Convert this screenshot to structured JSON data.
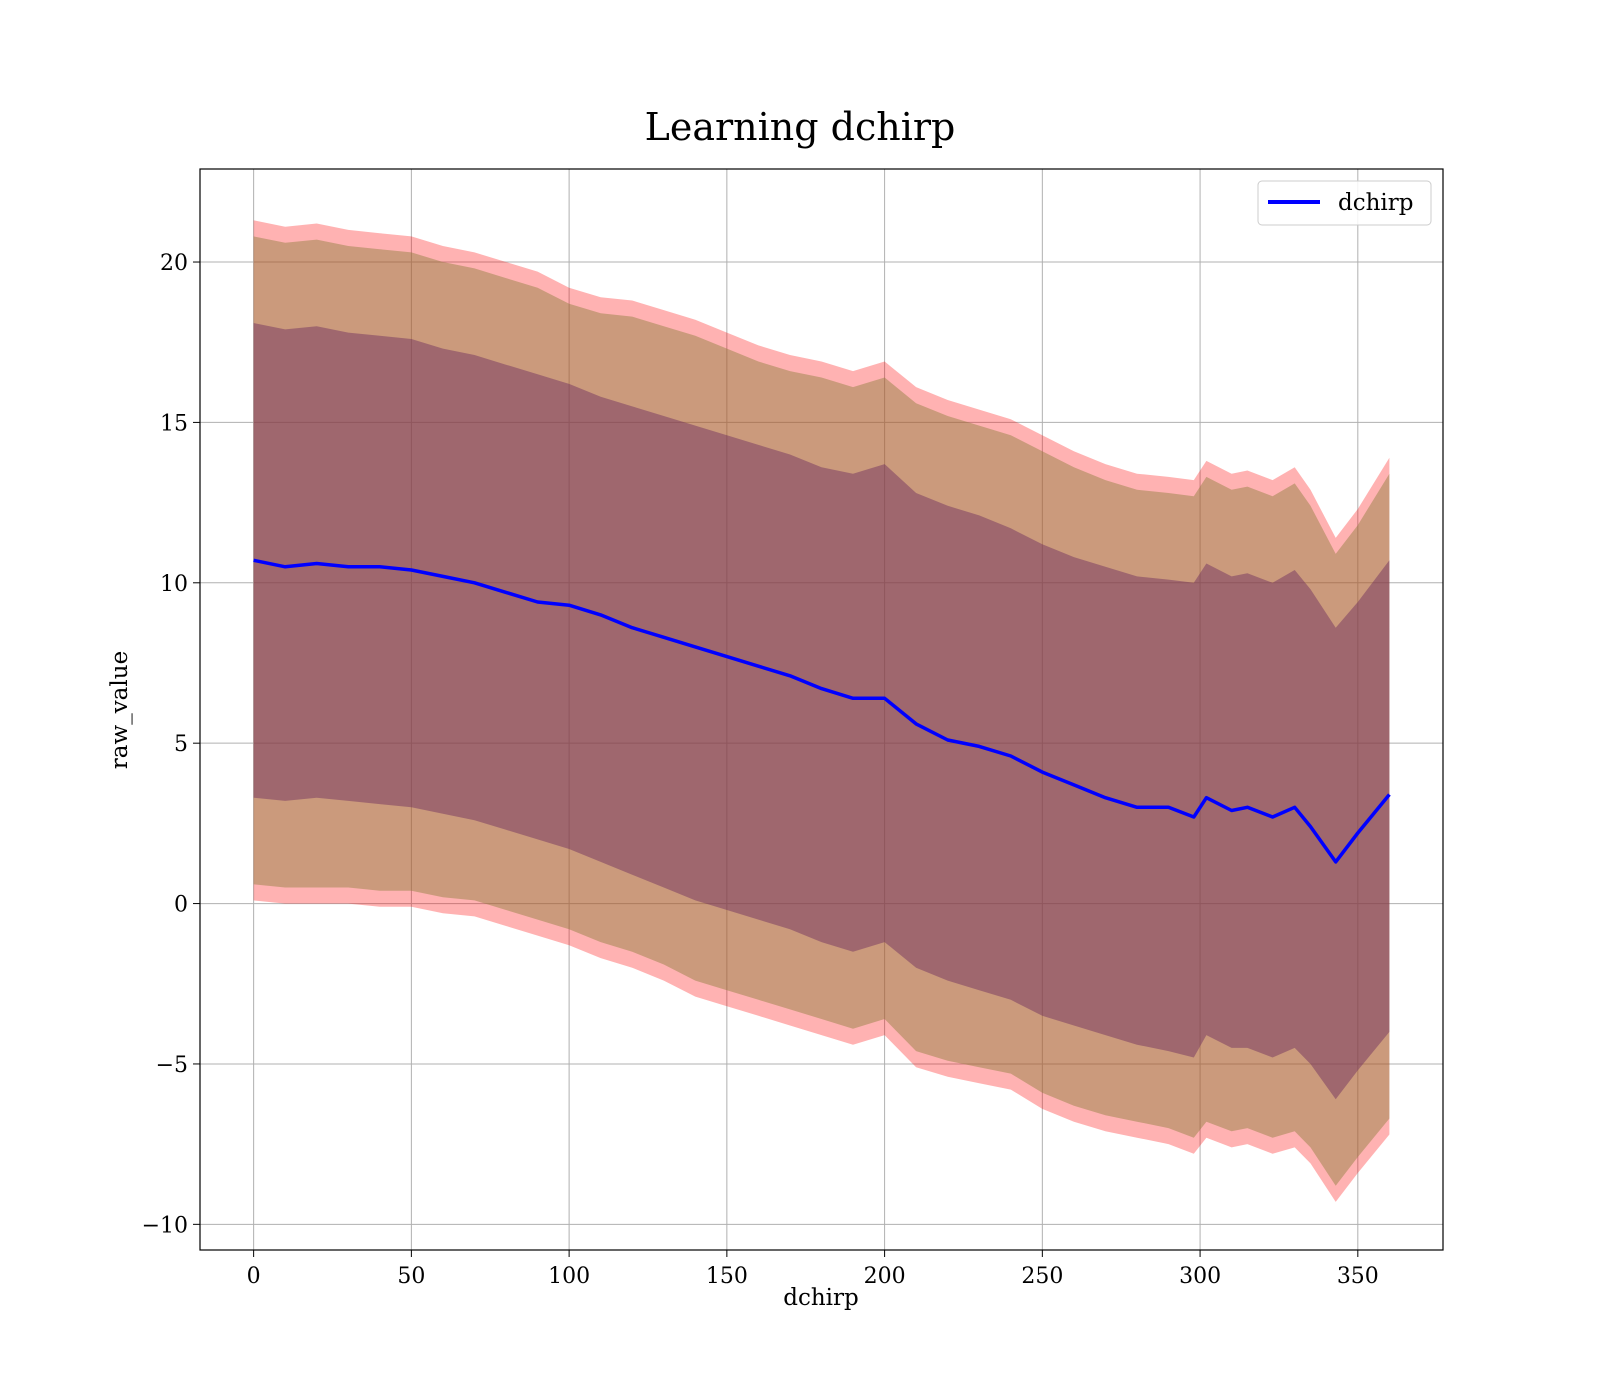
{
  "chart_data": {
    "type": "line",
    "title": "Learning dchirp",
    "xlabel": "dchirp",
    "ylabel": "raw_value",
    "xlim": [
      -17,
      377
    ],
    "ylim": [
      -10.8,
      22.9
    ],
    "xticks": [
      0,
      50,
      100,
      150,
      200,
      250,
      300,
      350
    ],
    "xtick_labels": [
      "0",
      "50",
      "100",
      "150",
      "200",
      "250",
      "300",
      "350"
    ],
    "yticks": [
      -10,
      -5,
      0,
      5,
      10,
      15,
      20
    ],
    "ytick_labels": [
      "−10",
      "−5",
      "0",
      "5",
      "10",
      "15",
      "20"
    ],
    "grid": true,
    "legend": {
      "position": "top-right",
      "entries": [
        "dchirp"
      ]
    },
    "colors": {
      "line": "#0000ff",
      "outer_band": "#ff0000",
      "middle_band": "#8b7d3a",
      "inner_band": "#6b2a5e"
    },
    "series": [
      {
        "name": "dchirp",
        "x": [
          0,
          10,
          20,
          30,
          40,
          50,
          60,
          70,
          80,
          90,
          100,
          110,
          120,
          130,
          140,
          150,
          160,
          170,
          180,
          190,
          200,
          210,
          220,
          230,
          240,
          250,
          260,
          270,
          280,
          290,
          298,
          302,
          310,
          315,
          323,
          330,
          335,
          343,
          350,
          360
        ],
        "y": [
          10.7,
          10.5,
          10.6,
          10.5,
          10.5,
          10.4,
          10.2,
          10.0,
          9.7,
          9.4,
          9.3,
          9.0,
          8.6,
          8.3,
          8.0,
          7.7,
          7.4,
          7.1,
          6.7,
          6.4,
          6.4,
          5.6,
          5.1,
          4.9,
          4.6,
          4.1,
          3.7,
          3.3,
          3.0,
          3.0,
          2.7,
          3.3,
          2.9,
          3.0,
          2.7,
          3.0,
          2.4,
          1.3,
          2.2,
          3.4
        ]
      }
    ],
    "bands": [
      {
        "label": "outer",
        "upper": [
          21.3,
          21.1,
          21.2,
          21.0,
          20.9,
          20.8,
          20.5,
          20.3,
          20.0,
          19.7,
          19.2,
          18.9,
          18.8,
          18.5,
          18.2,
          17.8,
          17.4,
          17.1,
          16.9,
          16.6,
          16.9,
          16.1,
          15.7,
          15.4,
          15.1,
          14.6,
          14.1,
          13.7,
          13.4,
          13.3,
          13.2,
          13.8,
          13.4,
          13.5,
          13.2,
          13.6,
          12.9,
          11.4,
          12.3,
          13.9
        ],
        "lower": [
          0.1,
          0.0,
          0.0,
          0.0,
          -0.1,
          -0.1,
          -0.3,
          -0.4,
          -0.7,
          -1.0,
          -1.3,
          -1.7,
          -2.0,
          -2.4,
          -2.9,
          -3.2,
          -3.5,
          -3.8,
          -4.1,
          -4.4,
          -4.1,
          -5.1,
          -5.4,
          -5.6,
          -5.8,
          -6.4,
          -6.8,
          -7.1,
          -7.3,
          -7.5,
          -7.8,
          -7.3,
          -7.6,
          -7.5,
          -7.8,
          -7.6,
          -8.1,
          -9.3,
          -8.4,
          -7.2
        ]
      },
      {
        "label": "middle",
        "upper": [
          20.8,
          20.6,
          20.7,
          20.5,
          20.4,
          20.3,
          20.0,
          19.8,
          19.5,
          19.2,
          18.7,
          18.4,
          18.3,
          18.0,
          17.7,
          17.3,
          16.9,
          16.6,
          16.4,
          16.1,
          16.4,
          15.6,
          15.2,
          14.9,
          14.6,
          14.1,
          13.6,
          13.2,
          12.9,
          12.8,
          12.7,
          13.3,
          12.9,
          13.0,
          12.7,
          13.1,
          12.4,
          10.9,
          11.8,
          13.4
        ],
        "lower": [
          0.6,
          0.5,
          0.5,
          0.5,
          0.4,
          0.4,
          0.2,
          0.1,
          -0.2,
          -0.5,
          -0.8,
          -1.2,
          -1.5,
          -1.9,
          -2.4,
          -2.7,
          -3.0,
          -3.3,
          -3.6,
          -3.9,
          -3.6,
          -4.6,
          -4.9,
          -5.1,
          -5.3,
          -5.9,
          -6.3,
          -6.6,
          -6.8,
          -7.0,
          -7.3,
          -6.8,
          -7.1,
          -7.0,
          -7.3,
          -7.1,
          -7.6,
          -8.8,
          -7.9,
          -6.7
        ]
      },
      {
        "label": "inner",
        "upper": [
          18.1,
          17.9,
          18.0,
          17.8,
          17.7,
          17.6,
          17.3,
          17.1,
          16.8,
          16.5,
          16.2,
          15.8,
          15.5,
          15.2,
          14.9,
          14.6,
          14.3,
          14.0,
          13.6,
          13.4,
          13.7,
          12.8,
          12.4,
          12.1,
          11.7,
          11.2,
          10.8,
          10.5,
          10.2,
          10.1,
          10.0,
          10.6,
          10.2,
          10.3,
          10.0,
          10.4,
          9.8,
          8.6,
          9.4,
          10.7
        ],
        "lower": [
          3.3,
          3.2,
          3.3,
          3.2,
          3.1,
          3.0,
          2.8,
          2.6,
          2.3,
          2.0,
          1.7,
          1.3,
          0.9,
          0.5,
          0.1,
          -0.2,
          -0.5,
          -0.8,
          -1.2,
          -1.5,
          -1.2,
          -2.0,
          -2.4,
          -2.7,
          -3.0,
          -3.5,
          -3.8,
          -4.1,
          -4.4,
          -4.6,
          -4.8,
          -4.1,
          -4.5,
          -4.5,
          -4.8,
          -4.5,
          -5.0,
          -6.1,
          -5.2,
          -4.0
        ]
      }
    ]
  }
}
